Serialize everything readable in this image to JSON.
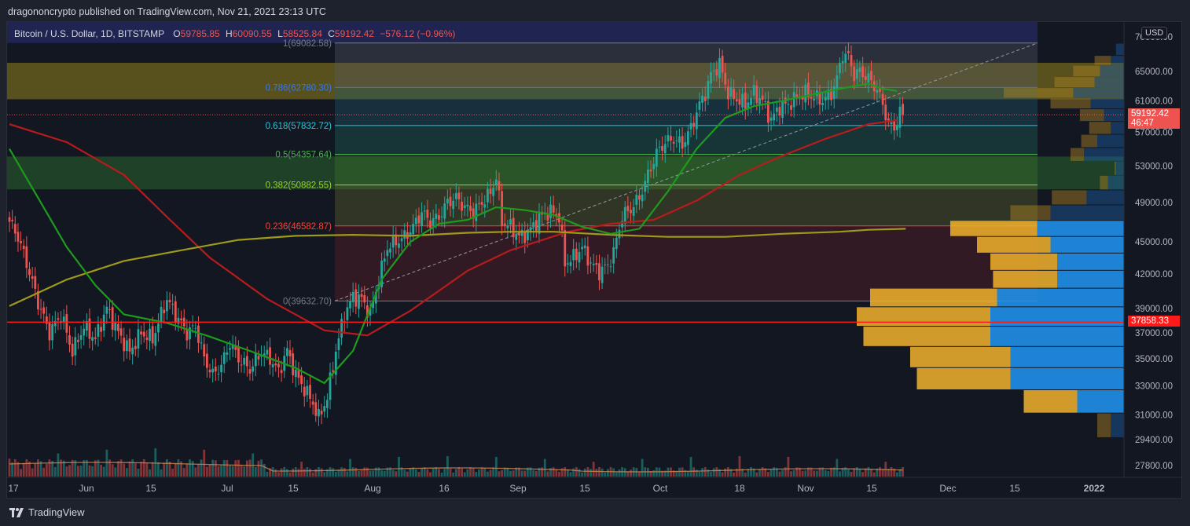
{
  "header": {
    "published": "dragononcrypto published on TradingView.com, Nov 21, 2021 23:13 UTC"
  },
  "legend": {
    "symbol": "Bitcoin / U.S. Dollar, 1D, BITSTAMP",
    "o_label": "O",
    "o_value": "59785.85",
    "h_label": "H",
    "h_value": "60090.55",
    "l_label": "L",
    "l_value": "58525.84",
    "c_label": "C",
    "c_value": "59192.42",
    "change": "−576.12 (−0.96%)"
  },
  "currency_button": "USD",
  "footer": {
    "brand": "TradingView"
  },
  "colors": {
    "up": "#26a69a",
    "down": "#ef5350",
    "ma_green": "#1e9b1e",
    "ma_red": "#b71c1c",
    "ma_yellow": "#9e9a1a",
    "hline": "#ff1a1a"
  },
  "chart_data": {
    "type": "candlestick",
    "symbol": "BTCUSD",
    "timeframe": "1D",
    "ylim": [
      27000,
      70500
    ],
    "x_ticks": [
      "17",
      "Jun",
      "15",
      "Jul",
      "15",
      "Aug",
      "16",
      "Sep",
      "15",
      "Oct",
      "18",
      "Nov",
      "15",
      "Dec",
      "15",
      "2022"
    ],
    "y_ticks": [
      "70000.00",
      "65000.00",
      "61000.00",
      "57000.00",
      "53000.00",
      "49000.00",
      "45000.00",
      "42000.00",
      "39000.00",
      "37000.00",
      "35000.00",
      "33000.00",
      "31000.00",
      "29400.00",
      "27800.00"
    ],
    "last_price": {
      "value": "59192.42",
      "countdown": "46:47"
    },
    "horizontal_line": {
      "value": 37858.33,
      "label": "37858.33"
    },
    "fibonacci": [
      {
        "level": "1",
        "price": 69082.58,
        "label": "1(69082.58)",
        "color": "#787b86"
      },
      {
        "level": "0.786",
        "price": 62780.3,
        "label": "0.786(62780.30)",
        "color": "#3179f5"
      },
      {
        "level": "0.618",
        "price": 57832.72,
        "label": "0.618(57832.72)",
        "color": "#26c6da"
      },
      {
        "level": "0.5",
        "price": 54357.64,
        "label": "0.5(54357.64)",
        "color": "#4caf50"
      },
      {
        "level": "0.382",
        "price": 50882.55,
        "label": "0.382(50882.55)",
        "color": "#9acd32"
      },
      {
        "level": "0.236",
        "price": 46582.87,
        "label": "0.236(46582.87)",
        "color": "#f44336"
      },
      {
        "level": "0",
        "price": 39632.7,
        "label": "0(39632.70)",
        "color": "#787b86"
      }
    ],
    "zones": [
      {
        "from": 61200,
        "to": 66200,
        "color": "#b8a21a"
      },
      {
        "from": 50400,
        "to": 54100,
        "color": "#2e7d32"
      }
    ],
    "close_path": [
      [
        0,
        47000
      ],
      [
        3,
        45500
      ],
      [
        6,
        43000
      ],
      [
        10,
        39500
      ],
      [
        14,
        37000
      ],
      [
        18,
        38500
      ],
      [
        22,
        35500
      ],
      [
        26,
        37500
      ],
      [
        30,
        36500
      ],
      [
        34,
        39000
      ],
      [
        38,
        37000
      ],
      [
        42,
        35500
      ],
      [
        46,
        37000
      ],
      [
        50,
        36500
      ],
      [
        55,
        39800
      ],
      [
        58,
        38500
      ],
      [
        62,
        37000
      ],
      [
        65,
        37500
      ],
      [
        68,
        35000
      ],
      [
        71,
        33800
      ],
      [
        74,
        34500
      ],
      [
        77,
        36200
      ],
      [
        80,
        35000
      ],
      [
        84,
        34200
      ],
      [
        88,
        35500
      ],
      [
        91,
        35000
      ],
      [
        94,
        34000
      ],
      [
        97,
        35600
      ],
      [
        100,
        33800
      ],
      [
        103,
        32800
      ],
      [
        106,
        31800
      ],
      [
        108,
        30800
      ],
      [
        111,
        32200
      ],
      [
        114,
        35600
      ],
      [
        117,
        38500
      ],
      [
        120,
        40000
      ],
      [
        123,
        39800
      ],
      [
        126,
        38500
      ],
      [
        129,
        41500
      ],
      [
        132,
        44500
      ],
      [
        135,
        45000
      ],
      [
        138,
        45500
      ],
      [
        141,
        46500
      ],
      [
        144,
        48000
      ],
      [
        147,
        47000
      ],
      [
        150,
        47500
      ],
      [
        153,
        49000
      ],
      [
        156,
        49500
      ],
      [
        159,
        48500
      ],
      [
        162,
        48000
      ],
      [
        165,
        49000
      ],
      [
        168,
        50000
      ],
      [
        170,
        51800
      ],
      [
        172,
        47000
      ],
      [
        175,
        46500
      ],
      [
        178,
        45500
      ],
      [
        181,
        45900
      ],
      [
        184,
        47000
      ],
      [
        187,
        47900
      ],
      [
        190,
        48000
      ],
      [
        192,
        47500
      ],
      [
        194,
        43000
      ],
      [
        197,
        43500
      ],
      [
        200,
        44500
      ],
      [
        203,
        43000
      ],
      [
        206,
        42200
      ],
      [
        209,
        42800
      ],
      [
        211,
        44000
      ],
      [
        214,
        47600
      ],
      [
        217,
        48300
      ],
      [
        220,
        49500
      ],
      [
        223,
        52000
      ],
      [
        226,
        54500
      ],
      [
        229,
        55800
      ],
      [
        232,
        56200
      ],
      [
        235,
        55500
      ],
      [
        238,
        57500
      ],
      [
        241,
        60500
      ],
      [
        243,
        62000
      ],
      [
        245,
        64500
      ],
      [
        248,
        66000
      ],
      [
        251,
        62000
      ],
      [
        254,
        61200
      ],
      [
        257,
        60500
      ],
      [
        260,
        62000
      ],
      [
        263,
        61000
      ],
      [
        266,
        58500
      ],
      [
        269,
        60300
      ],
      [
        272,
        60500
      ],
      [
        275,
        61500
      ],
      [
        278,
        62000
      ],
      [
        281,
        61500
      ],
      [
        284,
        61000
      ],
      [
        287,
        62000
      ],
      [
        289,
        64000
      ],
      [
        291,
        67500
      ],
      [
        293,
        67000
      ],
      [
        295,
        64500
      ],
      [
        297,
        65000
      ],
      [
        300,
        64000
      ],
      [
        303,
        62500
      ],
      [
        305,
        60500
      ],
      [
        307,
        58000
      ],
      [
        309,
        57500
      ],
      [
        311,
        59500
      ],
      [
        312,
        59192
      ]
    ],
    "sma_green": [
      [
        0,
        55000
      ],
      [
        10,
        49500
      ],
      [
        20,
        44500
      ],
      [
        30,
        41000
      ],
      [
        40,
        38500
      ],
      [
        55,
        37800
      ],
      [
        70,
        36700
      ],
      [
        85,
        35500
      ],
      [
        100,
        34300
      ],
      [
        110,
        33200
      ],
      [
        120,
        35600
      ],
      [
        130,
        41500
      ],
      [
        140,
        45000
      ],
      [
        150,
        46800
      ],
      [
        160,
        47200
      ],
      [
        170,
        48500
      ],
      [
        180,
        48200
      ],
      [
        190,
        47700
      ],
      [
        200,
        46500
      ],
      [
        210,
        45800
      ],
      [
        220,
        46300
      ],
      [
        230,
        50200
      ],
      [
        240,
        55000
      ],
      [
        250,
        58800
      ],
      [
        260,
        60300
      ],
      [
        270,
        61000
      ],
      [
        280,
        61800
      ],
      [
        290,
        62600
      ],
      [
        300,
        63300
      ],
      [
        305,
        62600
      ],
      [
        310,
        62300
      ]
    ],
    "sma_red": [
      [
        0,
        58000
      ],
      [
        20,
        55800
      ],
      [
        40,
        52000
      ],
      [
        55,
        47500
      ],
      [
        70,
        43500
      ],
      [
        90,
        39800
      ],
      [
        110,
        37200
      ],
      [
        125,
        36800
      ],
      [
        140,
        38800
      ],
      [
        160,
        42300
      ],
      [
        175,
        44200
      ],
      [
        195,
        46000
      ],
      [
        210,
        46800
      ],
      [
        225,
        47200
      ],
      [
        240,
        49200
      ],
      [
        255,
        52000
      ],
      [
        270,
        54200
      ],
      [
        285,
        56200
      ],
      [
        300,
        58000
      ],
      [
        310,
        58500
      ]
    ],
    "sma_yellow": [
      [
        0,
        39200
      ],
      [
        20,
        41500
      ],
      [
        40,
        43200
      ],
      [
        60,
        44200
      ],
      [
        80,
        45200
      ],
      [
        100,
        45600
      ],
      [
        120,
        45700
      ],
      [
        140,
        45600
      ],
      [
        160,
        45900
      ],
      [
        175,
        46000
      ],
      [
        190,
        46000
      ],
      [
        210,
        45700
      ],
      [
        230,
        45500
      ],
      [
        250,
        45500
      ],
      [
        270,
        45800
      ],
      [
        290,
        46000
      ],
      [
        300,
        46200
      ],
      [
        313,
        46300
      ]
    ],
    "volume_profile": [
      {
        "from": 67200,
        "to": 69000,
        "left": 0.0,
        "right": 0.06
      },
      {
        "from": 65800,
        "to": 67200,
        "left": 0.12,
        "right": 0.1
      },
      {
        "from": 64200,
        "to": 65800,
        "left": 0.2,
        "right": 0.18
      },
      {
        "from": 62700,
        "to": 64200,
        "left": 0.3,
        "right": 0.22
      },
      {
        "from": 61300,
        "to": 62700,
        "left": 0.52,
        "right": 0.38
      },
      {
        "from": 59900,
        "to": 61300,
        "left": 0.3,
        "right": 0.25
      },
      {
        "from": 58300,
        "to": 59900,
        "left": 0.18,
        "right": 0.15
      },
      {
        "from": 56700,
        "to": 58300,
        "left": 0.16,
        "right": 0.1
      },
      {
        "from": 55100,
        "to": 56700,
        "left": 0.12,
        "right": 0.2
      },
      {
        "from": 53500,
        "to": 55100,
        "left": 0.1,
        "right": 0.3
      },
      {
        "from": 51900,
        "to": 53500,
        "left": 0.01,
        "right": 0.06
      },
      {
        "from": 50300,
        "to": 51900,
        "left": 0.06,
        "right": 0.12
      },
      {
        "from": 48700,
        "to": 50300,
        "left": 0.26,
        "right": 0.28
      },
      {
        "from": 47100,
        "to": 48700,
        "left": 0.3,
        "right": 0.55
      },
      {
        "from": 45500,
        "to": 47100,
        "left": 0.65,
        "right": 0.65
      },
      {
        "from": 43900,
        "to": 45500,
        "left": 0.55,
        "right": 0.55
      },
      {
        "from": 42300,
        "to": 43900,
        "left": 0.5,
        "right": 0.5
      },
      {
        "from": 40700,
        "to": 42300,
        "left": 0.48,
        "right": 0.5
      },
      {
        "from": 39100,
        "to": 40700,
        "left": 0.95,
        "right": 0.95
      },
      {
        "from": 37500,
        "to": 39100,
        "left": 1.0,
        "right": 1.0
      },
      {
        "from": 35900,
        "to": 37500,
        "left": 0.95,
        "right": 1.0
      },
      {
        "from": 34300,
        "to": 35900,
        "left": 0.75,
        "right": 0.85
      },
      {
        "from": 32700,
        "to": 34300,
        "left": 0.7,
        "right": 0.85
      },
      {
        "from": 31100,
        "to": 32700,
        "left": 0.4,
        "right": 0.35
      },
      {
        "from": 29500,
        "to": 31100,
        "left": 0.1,
        "right": 0.1
      }
    ]
  }
}
